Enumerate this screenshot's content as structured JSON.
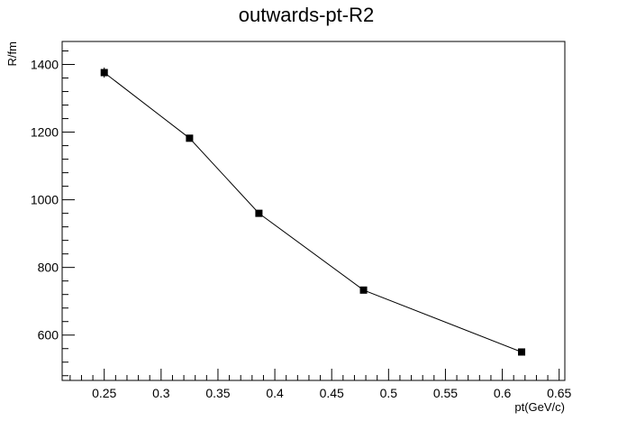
{
  "chart_data": {
    "type": "line",
    "title": "outwards-pt-R2",
    "xlabel": "pt(GeV/c)",
    "ylabel": "R/fm",
    "xlim": [
      0.213,
      0.655
    ],
    "ylim": [
      466,
      1468
    ],
    "grid": false,
    "x_ticks": [
      0.25,
      0.3,
      0.35,
      0.4,
      0.45,
      0.5,
      0.55,
      0.6,
      0.65
    ],
    "x_tick_labels": [
      "0.25",
      "0.3",
      "0.35",
      "0.4",
      "0.45",
      "0.5",
      "0.55",
      "0.6",
      "0.65"
    ],
    "y_ticks": [
      600,
      800,
      1000,
      1200,
      1400
    ],
    "y_tick_labels": [
      "600",
      "800",
      "1000",
      "1200",
      "1400"
    ],
    "series": [
      {
        "x": [
          0.25,
          0.325,
          0.386,
          0.478,
          0.617
        ],
        "y": [
          1376,
          1182,
          960,
          733,
          550
        ],
        "yerr": [
          15,
          6,
          6,
          6,
          6
        ],
        "marker": "square",
        "color": "#000000"
      }
    ]
  }
}
